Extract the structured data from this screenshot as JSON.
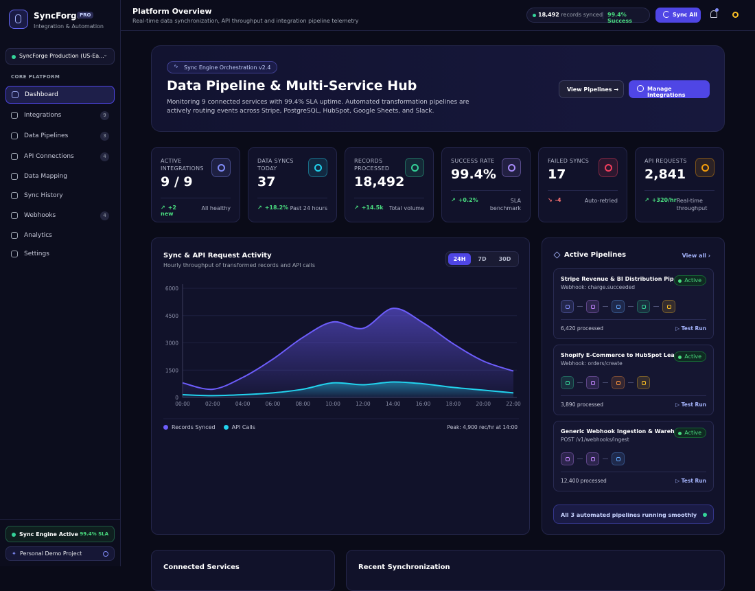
{
  "sidebar": {
    "brand": "SyncForge",
    "badge": "PRO",
    "tagline": "Integration & Automation",
    "workspace": "SyncForge Production (US-Ea...",
    "section": "CORE PLATFORM",
    "nav": [
      {
        "label": "Dashboard"
      },
      {
        "label": "Integrations",
        "count": 9
      },
      {
        "label": "Data Pipelines",
        "count": 3
      },
      {
        "label": "API Connections",
        "count": 4
      },
      {
        "label": "Data Mapping"
      },
      {
        "label": "Sync History"
      },
      {
        "label": "Webhooks",
        "count": 4
      },
      {
        "label": "Analytics"
      },
      {
        "label": "Settings"
      }
    ],
    "status": {
      "label": "Sync Engine Active",
      "sla": "99.4% SLA"
    },
    "project": "Personal Demo Project"
  },
  "header": {
    "title": "Platform Overview",
    "subtitle": "Real-time data synchronization, API throughput and integration pipeline telemetry",
    "records": "18,492",
    "records_label": "records synced",
    "success": "99.4% Success",
    "sync_button": "Sync All"
  },
  "hero": {
    "tag": "Sync Engine Orchestration v2.4",
    "title": "Data Pipeline & Multi-Service Hub",
    "description": "Monitoring 9 connected services with 99.4% SLA uptime. Automated transformation pipelines are actively routing events across Stripe, PostgreSQL, HubSpot, Google Sheets, and Slack.",
    "buttons": [
      "View Pipelines",
      "Manage Integrations"
    ]
  },
  "stats": [
    {
      "label": "ACTIVE INTEGRATIONS",
      "value": "9 / 9",
      "delta": "+2 new",
      "note": "All healthy",
      "color": "#818cf8"
    },
    {
      "label": "DATA SYNCS TODAY",
      "value": "37",
      "delta": "+18.2%",
      "note": "Past 24 hours",
      "color": "#22d3ee"
    },
    {
      "label": "RECORDS PROCESSED",
      "value": "18,492",
      "delta": "+14.5k",
      "note": "Total volume",
      "color": "#34d399"
    },
    {
      "label": "SUCCESS RATE",
      "value": "99.4%",
      "delta": "+0.2%",
      "note": "SLA benchmark",
      "color": "#a78bfa"
    },
    {
      "label": "FAILED SYNCS",
      "value": "17",
      "delta": "-4",
      "note": "Auto-retried",
      "color": "#f43f5e"
    },
    {
      "label": "API REQUESTS",
      "value": "2,841",
      "delta": "+320/hr",
      "note": "Real-time throughput",
      "color": "#f59e0b"
    }
  ],
  "chart_data": {
    "type": "area",
    "title": "Sync & API Request Activity",
    "subtitle": "Hourly throughput of transformed records and API calls",
    "ranges": [
      "24H",
      "7D",
      "30D"
    ],
    "categories": [
      "00:00",
      "02:00",
      "04:00",
      "06:00",
      "08:00",
      "10:00",
      "12:00",
      "14:00",
      "16:00",
      "18:00",
      "20:00",
      "22:00"
    ],
    "series": [
      {
        "name": "Records Synced",
        "color": "#6d5dfc",
        "values": [
          800,
          450,
          1100,
          2100,
          3300,
          4150,
          3800,
          4900,
          4100,
          2950,
          2000,
          1450
        ]
      },
      {
        "name": "API Calls",
        "color": "#22d3ee",
        "values": [
          150,
          100,
          150,
          250,
          450,
          800,
          700,
          850,
          750,
          550,
          400,
          250
        ]
      }
    ],
    "ylim": [
      0,
      6000
    ],
    "yticks": [
      0,
      1500,
      3000,
      4500,
      6000
    ],
    "note": "Peak: 4,900 rec/hr at 14:00"
  },
  "pipelines": {
    "title": "Active Pipelines",
    "view_all": "View all",
    "items": [
      {
        "name": "Stripe Revenue & BI Distribution Pipeline",
        "source": "Webhook: charge.succeeded",
        "status": "Active",
        "processed": "6,420 processed",
        "action": "Test Run"
      },
      {
        "name": "Shopify E-Commerce to HubSpot Lead ...",
        "source": "Webhook: orders/create",
        "status": "Active",
        "processed": "3,890 processed",
        "action": "Test Run"
      },
      {
        "name": "Generic Webhook Ingestion & Wareho...",
        "source": "POST /v1/webhooks/ingest",
        "status": "Active",
        "processed": "12,400 processed",
        "action": "Test Run"
      }
    ],
    "footer": "All 3 automated pipelines running smoothly"
  },
  "bottom": [
    "Connected Services",
    "Recent Synchronization"
  ]
}
